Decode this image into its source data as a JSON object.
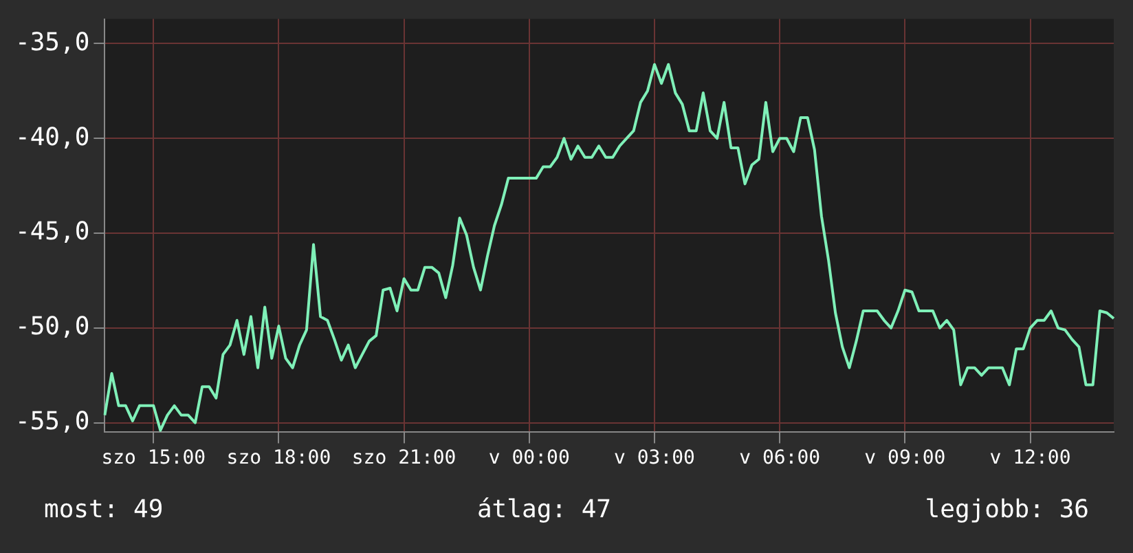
{
  "chart_data": {
    "type": "line",
    "grid": true,
    "marker": "none",
    "line_style": "solid",
    "categories": [
      null,
      null,
      null,
      null,
      null,
      null,
      null,
      "szo 15:00",
      null,
      null,
      null,
      null,
      null,
      null,
      null,
      null,
      null,
      null,
      null,
      null,
      null,
      null,
      null,
      null,
      null,
      "szo 18:00",
      null,
      null,
      null,
      null,
      null,
      null,
      null,
      null,
      null,
      null,
      null,
      null,
      null,
      null,
      null,
      null,
      null,
      "szo 21:00",
      null,
      null,
      null,
      null,
      null,
      null,
      null,
      null,
      null,
      null,
      null,
      null,
      null,
      null,
      null,
      null,
      null,
      "v 00:00",
      null,
      null,
      null,
      null,
      null,
      null,
      null,
      null,
      null,
      null,
      null,
      null,
      null,
      null,
      null,
      null,
      null,
      "v 03:00",
      null,
      null,
      null,
      null,
      null,
      null,
      null,
      null,
      null,
      null,
      null,
      null,
      null,
      null,
      null,
      null,
      null,
      "v 06:00",
      null,
      null,
      null,
      null,
      null,
      null,
      null,
      null,
      null,
      null,
      null,
      null,
      null,
      null,
      null,
      null,
      null,
      "v 09:00",
      null,
      null,
      null,
      null,
      null,
      null,
      null,
      null,
      null,
      null,
      null,
      null,
      null,
      null,
      null,
      null,
      null,
      "v 12:00",
      null,
      null,
      null,
      null,
      null,
      null,
      null,
      null,
      null,
      null,
      null,
      null
    ],
    "ylim": [
      -55.5,
      -33.7
    ],
    "yticks": [
      {
        "value": -55,
        "label": "-55,0"
      },
      {
        "value": -50,
        "label": "-50,0"
      },
      {
        "value": -45,
        "label": "-45,0"
      },
      {
        "value": -40,
        "label": "-40,0"
      },
      {
        "value": -35,
        "label": "-35,0"
      }
    ],
    "annotations": [
      "most: 49",
      "átlag: 47",
      "legjobb: 36"
    ],
    "series": [
      {
        "color": "#7ff0b8",
        "values": [
          -54.6,
          -52.4,
          -54.1,
          -54.1,
          -54.9,
          -54.1,
          -54.1,
          -54.1,
          -55.4,
          -54.6,
          -54.1,
          -54.6,
          -54.6,
          -55,
          -53.1,
          -53.1,
          -53.7,
          -51.4,
          -50.9,
          -49.6,
          -51.4,
          -49.4,
          -52.1,
          -48.9,
          -51.6,
          -49.9,
          -51.6,
          -52.1,
          -50.9,
          -50.1,
          -45.6,
          -49.4,
          -49.6,
          -50.6,
          -51.7,
          -50.9,
          -52.1,
          -51.4,
          -50.7,
          -50.4,
          -48,
          -47.9,
          -49.1,
          -47.4,
          -48,
          -48,
          -46.8,
          -46.8,
          -47.1,
          -48.4,
          -46.7,
          -44.2,
          -45.1,
          -46.8,
          -48,
          -46.2,
          -44.6,
          -43.5,
          -42.1,
          -42.1,
          -42.1,
          -42.1,
          -42.1,
          -41.5,
          -41.5,
          -41,
          -40,
          -41.1,
          -40.4,
          -41,
          -41,
          -40.4,
          -41,
          -41,
          -40.4,
          -40,
          -39.6,
          -38.1,
          -37.5,
          -36.1,
          -37.1,
          -36.1,
          -37.6,
          -38.2,
          -39.6,
          -39.6,
          -37.6,
          -39.6,
          -40,
          -38.1,
          -40.5,
          -40.5,
          -42.4,
          -41.4,
          -41.1,
          -38.1,
          -40.7,
          -40,
          -40,
          -40.7,
          -38.9,
          -38.9,
          -40.6,
          -44.1,
          -46.4,
          -49.2,
          -51,
          -52.1,
          -50.7,
          -49.1,
          -49.1,
          -49.1,
          -49.6,
          -50,
          -49.1,
          -48,
          -48.1,
          -49.1,
          -49.1,
          -49.1,
          -50,
          -49.6,
          -50.1,
          -53,
          -52.1,
          -52.1,
          -52.5,
          -52.1,
          -52.1,
          -52.1,
          -53,
          -51.1,
          -51.1,
          -50,
          -49.6,
          -49.6,
          -49.1,
          -50,
          -50.1,
          -50.6,
          -51,
          -53,
          -53,
          -49.1,
          -49.2,
          -49.5
        ]
      }
    ]
  }
}
